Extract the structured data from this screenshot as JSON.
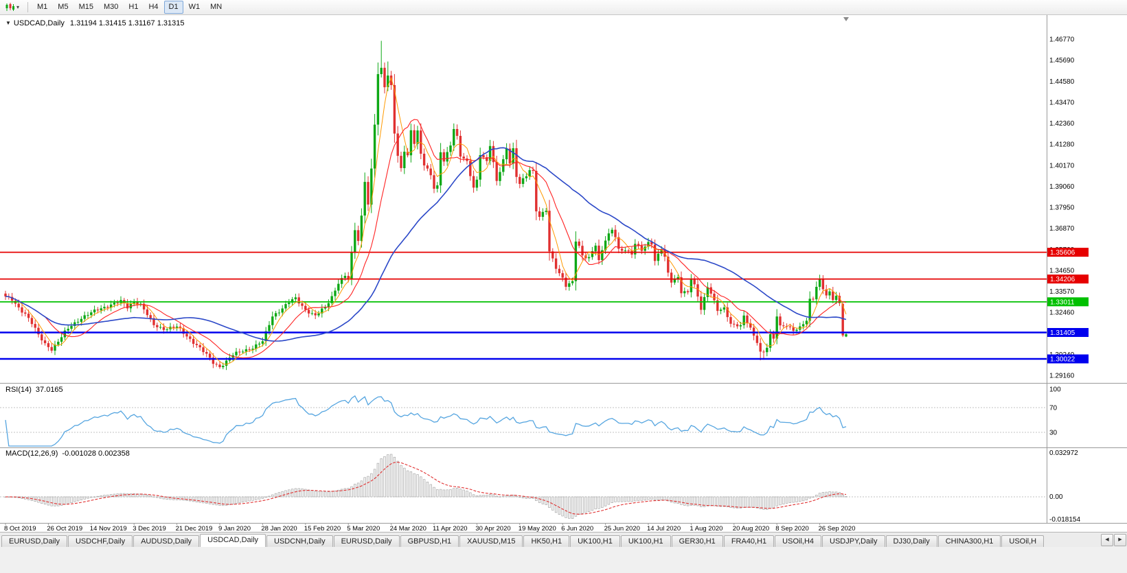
{
  "toolbar": {
    "chart_type_icon": "candlestick-chart-icon",
    "dropdown_caret": "▾",
    "timeframes": [
      "M1",
      "M5",
      "M15",
      "M30",
      "H1",
      "H4",
      "D1",
      "W1",
      "MN"
    ],
    "active_timeframe": "D1"
  },
  "chart": {
    "dropdown_marker": "▼",
    "symbol_title": "USDCAD,Daily",
    "ohlc": "1.31194 1.31415 1.31167 1.31315"
  },
  "indicators": {
    "rsi": {
      "label": "RSI(14)",
      "value": "37.0165",
      "levels": [
        "100",
        "70",
        "30"
      ]
    },
    "macd": {
      "label": "MACD(12,26,9)",
      "values": "-0.001028 0.002358",
      "axis": [
        "0.032972",
        "0.00",
        "-0.018154"
      ]
    }
  },
  "chart_data": {
    "type": "candlestick",
    "symbol": "USDCAD",
    "timeframe": "Daily",
    "last_ohlc": {
      "open": 1.31194,
      "high": 1.31415,
      "low": 1.31167,
      "close": 1.31315
    },
    "bars": 256,
    "price_axis_labels": [
      "1.46770",
      "1.45690",
      "1.44580",
      "1.43470",
      "1.42360",
      "1.41280",
      "1.40170",
      "1.39060",
      "1.37950",
      "1.36870",
      "1.35760",
      "1.34650",
      "1.33570",
      "1.32460",
      "1.31350",
      "1.30240",
      "1.29160"
    ],
    "x_labels": [
      "8 Oct 2019",
      "26 Oct 2019",
      "14 Nov 2019",
      "3 Dec 2019",
      "21 Dec 2019",
      "9 Jan 2020",
      "28 Jan 2020",
      "15 Feb 2020",
      "5 Mar 2020",
      "24 Mar 2020",
      "11 Apr 2020",
      "30 Apr 2020",
      "19 May 2020",
      "6 Jun 2020",
      "25 Jun 2020",
      "14 Jul 2020",
      "1 Aug 2020",
      "20 Aug 2020",
      "8 Sep 2020",
      "26 Sep 2020"
    ],
    "hlines": [
      {
        "price": 1.35606,
        "color": "#e60000",
        "label": "1.35606",
        "width": 1.8
      },
      {
        "price": 1.34206,
        "color": "#e60000",
        "label": "1.34206",
        "width": 1.8
      },
      {
        "price": 1.33011,
        "color": "#00c000",
        "label": "1.33011",
        "width": 1.8
      },
      {
        "price": 1.31405,
        "color": "#0000ee",
        "label": "1.31405",
        "width": 2.5
      },
      {
        "price": 1.30022,
        "color": "#0000ee",
        "label": "1.30022",
        "width": 2.5
      }
    ],
    "ma_lines": [
      {
        "period": 5,
        "color": "#ff9900",
        "width": 1
      },
      {
        "period": 13,
        "color": "#ff2222",
        "width": 1.1
      },
      {
        "period": 40,
        "color": "#2b48c8",
        "width": 1.6
      }
    ],
    "colors": {
      "bull": "#0da815",
      "bear": "#e03030",
      "rsi_line": "#55a5e0",
      "macd_hist_fill": "#f2f2f2",
      "macd_hist_stroke": "#9f9f9f",
      "macd_signal": "#e03030",
      "level_dotted": "#c0c0c0",
      "separator": "#9a9a9a"
    },
    "price_anchors": [
      [
        0,
        1.3325
      ],
      [
        2,
        1.331
      ],
      [
        4,
        1.3272
      ],
      [
        6,
        1.324
      ],
      [
        8,
        1.3188
      ],
      [
        10,
        1.3125
      ],
      [
        12,
        1.3082
      ],
      [
        14,
        1.3055
      ],
      [
        16,
        1.3092
      ],
      [
        18,
        1.314
      ],
      [
        20,
        1.3178
      ],
      [
        23,
        1.3218
      ],
      [
        26,
        1.3242
      ],
      [
        29,
        1.3268
      ],
      [
        32,
        1.3288
      ],
      [
        35,
        1.3302
      ],
      [
        37,
        1.3272
      ],
      [
        39,
        1.3305
      ],
      [
        41,
        1.3288
      ],
      [
        43,
        1.3232
      ],
      [
        45,
        1.3178
      ],
      [
        48,
        1.3162
      ],
      [
        52,
        1.3168
      ],
      [
        55,
        1.3122
      ],
      [
        58,
        1.3076
      ],
      [
        61,
        1.3022
      ],
      [
        63,
        1.2982
      ],
      [
        65,
        1.2962
      ],
      [
        67,
        1.299
      ],
      [
        69,
        1.3022
      ],
      [
        72,
        1.3046
      ],
      [
        75,
        1.3062
      ],
      [
        78,
        1.3092
      ],
      [
        81,
        1.3228
      ],
      [
        84,
        1.3268
      ],
      [
        86,
        1.3298
      ],
      [
        88,
        1.3318
      ],
      [
        91,
        1.3262
      ],
      [
        94,
        1.3226
      ],
      [
        97,
        1.3272
      ],
      [
        99,
        1.333
      ],
      [
        101,
        1.3402
      ],
      [
        103,
        1.3436
      ],
      [
        104,
        1.342
      ],
      [
        106,
        1.368
      ],
      [
        107,
        1.3625
      ],
      [
        108,
        1.3752
      ],
      [
        109,
        1.3938
      ],
      [
        110,
        1.3812
      ],
      [
        111,
        1.3992
      ],
      [
        112,
        1.423
      ],
      [
        113,
        1.4488
      ],
      [
        114,
        1.452
      ],
      [
        115,
        1.4432
      ],
      [
        116,
        1.4488
      ],
      [
        117,
        1.4438
      ],
      [
        118,
        1.4192
      ],
      [
        119,
        1.4062
      ],
      [
        120,
        1.3996
      ],
      [
        121,
        1.4088
      ],
      [
        122,
        1.406
      ],
      [
        123,
        1.4198
      ],
      [
        124,
        1.4136
      ],
      [
        125,
        1.4198
      ],
      [
        126,
        1.4082
      ],
      [
        127,
        1.4022
      ],
      [
        129,
        1.3962
      ],
      [
        130,
        1.3892
      ],
      [
        131,
        1.3902
      ],
      [
        132,
        1.4088
      ],
      [
        133,
        1.4042
      ],
      [
        135,
        1.4128
      ],
      [
        136,
        1.4208
      ],
      [
        137,
        1.4162
      ],
      [
        138,
        1.4062
      ],
      [
        140,
        1.4032
      ],
      [
        142,
        1.3902
      ],
      [
        143,
        1.3942
      ],
      [
        144,
        1.4078
      ],
      [
        146,
        1.4032
      ],
      [
        147,
        1.4118
      ],
      [
        149,
        1.3932
      ],
      [
        151,
        1.4048
      ],
      [
        152,
        1.4108
      ],
      [
        153,
        1.4032
      ],
      [
        154,
        1.4098
      ],
      [
        155,
        1.3952
      ],
      [
        156,
        1.3918
      ],
      [
        158,
        1.3962
      ],
      [
        159,
        1.3998
      ],
      [
        160,
        1.3986
      ],
      [
        161,
        1.3782
      ],
      [
        162,
        1.3748
      ],
      [
        164,
        1.3778
      ],
      [
        165,
        1.3562
      ],
      [
        167,
        1.3482
      ],
      [
        169,
        1.3428
      ],
      [
        170,
        1.3388
      ],
      [
        172,
        1.3402
      ],
      [
        173,
        1.3618
      ],
      [
        174,
        1.3588
      ],
      [
        175,
        1.3542
      ],
      [
        177,
        1.3536
      ],
      [
        179,
        1.3602
      ],
      [
        180,
        1.3512
      ],
      [
        182,
        1.3622
      ],
      [
        184,
        1.3682
      ],
      [
        185,
        1.3648
      ],
      [
        186,
        1.3578
      ],
      [
        188,
        1.3572
      ],
      [
        190,
        1.3548
      ],
      [
        191,
        1.3602
      ],
      [
        193,
        1.3576
      ],
      [
        195,
        1.3614
      ],
      [
        196,
        1.3608
      ],
      [
        197,
        1.3512
      ],
      [
        199,
        1.3578
      ],
      [
        200,
        1.3532
      ],
      [
        201,
        1.3452
      ],
      [
        202,
        1.3412
      ],
      [
        204,
        1.3432
      ],
      [
        205,
        1.3352
      ],
      [
        207,
        1.3346
      ],
      [
        208,
        1.3418
      ],
      [
        209,
        1.3386
      ],
      [
        210,
        1.3332
      ],
      [
        211,
        1.3268
      ],
      [
        213,
        1.3382
      ],
      [
        214,
        1.3346
      ],
      [
        216,
        1.3252
      ],
      [
        218,
        1.3266
      ],
      [
        220,
        1.3192
      ],
      [
        221,
        1.3182
      ],
      [
        223,
        1.3176
      ],
      [
        224,
        1.322
      ],
      [
        226,
        1.3162
      ],
      [
        227,
        1.3122
      ],
      [
        228,
        1.3096
      ],
      [
        229,
        1.3042
      ],
      [
        230,
        1.3038
      ],
      [
        231,
        1.3066
      ],
      [
        232,
        1.3124
      ],
      [
        233,
        1.3102
      ],
      [
        234,
        1.3226
      ],
      [
        235,
        1.3172
      ],
      [
        237,
        1.3182
      ],
      [
        239,
        1.3152
      ],
      [
        241,
        1.3162
      ],
      [
        243,
        1.3202
      ],
      [
        244,
        1.3312
      ],
      [
        245,
        1.3322
      ],
      [
        246,
        1.3386
      ],
      [
        247,
        1.3418
      ],
      [
        248,
        1.3372
      ],
      [
        249,
        1.3332
      ],
      [
        250,
        1.3346
      ],
      [
        251,
        1.3312
      ],
      [
        252,
        1.333
      ],
      [
        253,
        1.3292
      ],
      [
        254,
        1.3125
      ],
      [
        255,
        1.31315
      ]
    ],
    "special_bars": {
      "65": {
        "l": 1.295
      },
      "114": {
        "h": 1.4668
      },
      "116": {
        "h": 1.456
      },
      "229": {
        "l": 1.2995
      },
      "230": {
        "l": 1.2998
      },
      "254": {
        "o": 1.329,
        "h": 1.3296,
        "l": 1.3117,
        "c": 1.3125
      },
      "255": {
        "o": 1.31194,
        "h": 1.31415,
        "l": 1.31167,
        "c": 1.31315
      }
    }
  },
  "tabs": {
    "items": [
      "EURUSD,Daily",
      "USDCHF,Daily",
      "AUDUSD,Daily",
      "USDCAD,Daily",
      "USDCNH,Daily",
      "EURUSD,Daily",
      "GBPUSD,H1",
      "XAUUSD,M15",
      "HK50,H1",
      "UK100,H1",
      "UK100,H1",
      "GER30,H1",
      "FRA40,H1",
      "USOil,H4",
      "USDJPY,Daily",
      "DJ30,Daily",
      "CHINA300,H1",
      "USOil,H"
    ],
    "active_index": 3,
    "scroll_left": "◀",
    "scroll_right": "▶"
  }
}
